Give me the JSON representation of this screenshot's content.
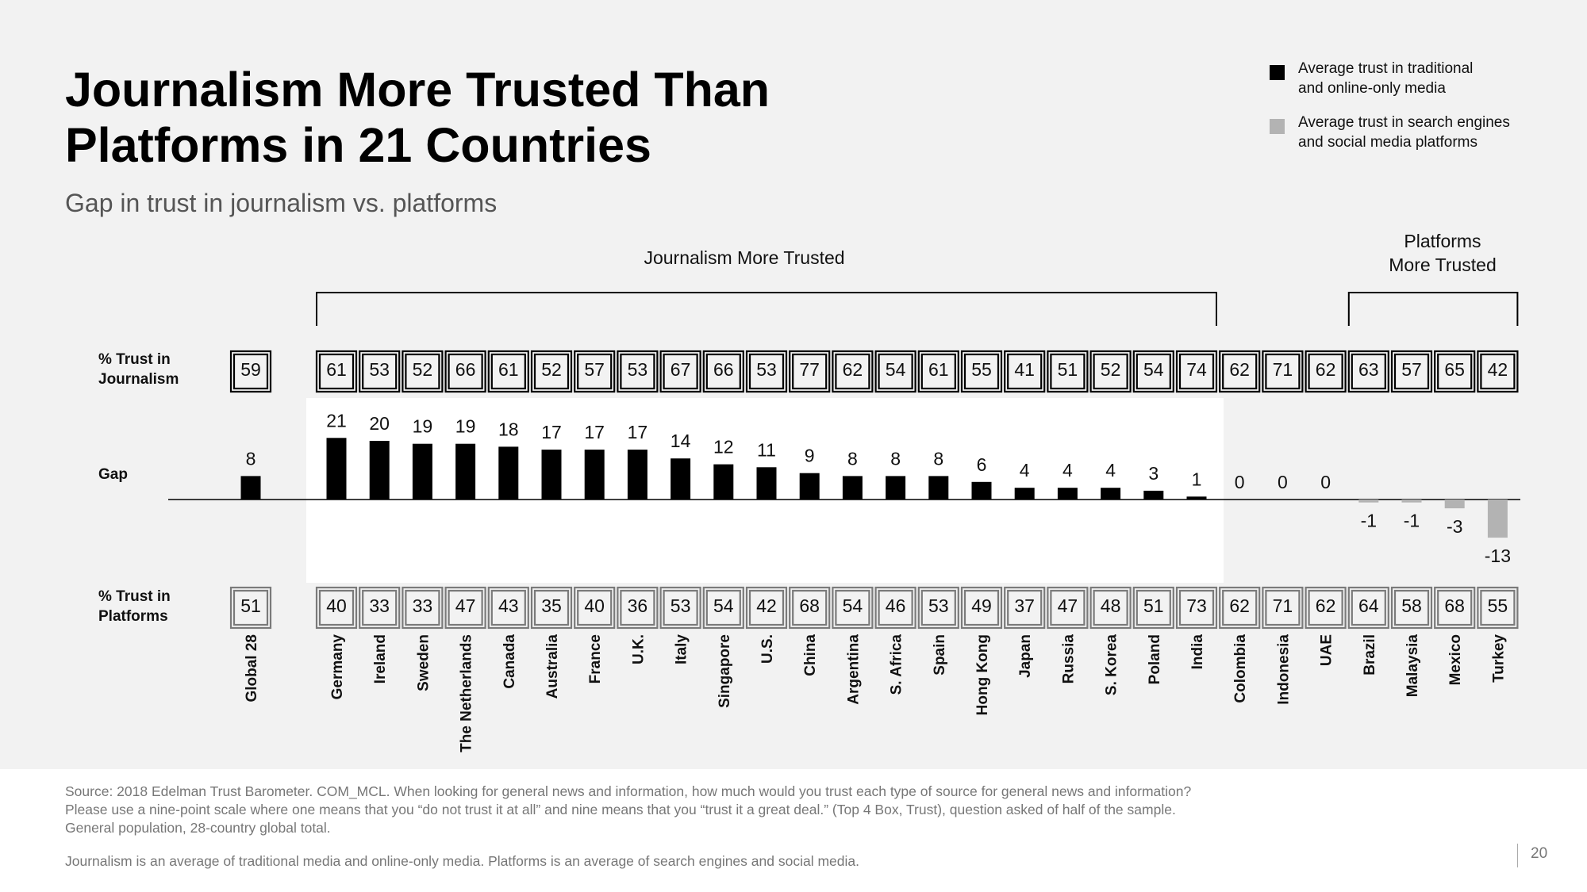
{
  "title": "Journalism More Trusted Than Platforms in 21 Countries",
  "subtitle": "Gap in trust in journalism vs. platforms",
  "legend": {
    "items": [
      {
        "label": "Average trust in traditional\nand online-only media",
        "color": "#000000"
      },
      {
        "label": "Average trust in search engines\nand social media platforms",
        "color": "#b3b3b3"
      }
    ]
  },
  "footnote": {
    "source": "Source: 2018 Edelman Trust Barometer. COM_MCL. When looking for general news and information, how much would you trust each type of source for general news and information? Please use a nine-point scale where one means that you “do not trust it at all” and nine means that you “trust it a great deal.” (Top 4 Box, Trust), question asked of half of the sample. General population, 28-country global total.",
    "note": "Journalism is an average of traditional media and online-only media. Platforms is an average of search engines and social media."
  },
  "page_number": "20",
  "chart_data": {
    "type": "bar",
    "title": "Journalism More Trusted Than Platforms in 21 Countries",
    "subtitle": "Gap in trust in journalism vs. platforms",
    "row_labels": {
      "journalism": "% Trust in\nJournalism",
      "gap": "Gap",
      "platforms": "% Trust in\nPlatforms"
    },
    "group_labels": {
      "journalism_more": "Journalism More Trusted",
      "platforms_more": "Platforms\nMore Trusted"
    },
    "categories": [
      "Global 28",
      "Germany",
      "Ireland",
      "Sweden",
      "The Netherlands",
      "Canada",
      "Australia",
      "France",
      "U.K.",
      "Italy",
      "Singapore",
      "U.S.",
      "China",
      "Argentina",
      "S. Africa",
      "Spain",
      "Hong Kong",
      "Japan",
      "Russia",
      "S. Korea",
      "Poland",
      "India",
      "Colombia",
      "Indonesia",
      "UAE",
      "Brazil",
      "Malaysia",
      "Mexico",
      "Turkey"
    ],
    "series": [
      {
        "name": "% Trust in Journalism",
        "values": [
          59,
          61,
          53,
          52,
          66,
          61,
          52,
          57,
          53,
          67,
          66,
          53,
          77,
          62,
          54,
          61,
          55,
          41,
          51,
          52,
          54,
          74,
          62,
          71,
          62,
          63,
          57,
          65,
          42
        ]
      },
      {
        "name": "Gap",
        "values": [
          8,
          21,
          20,
          19,
          19,
          18,
          17,
          17,
          17,
          14,
          12,
          11,
          9,
          8,
          8,
          8,
          6,
          4,
          4,
          4,
          3,
          1,
          0,
          0,
          0,
          -1,
          -1,
          -3,
          -13
        ]
      },
      {
        "name": "% Trust in Platforms",
        "values": [
          51,
          40,
          33,
          33,
          47,
          43,
          35,
          40,
          36,
          53,
          54,
          42,
          68,
          54,
          46,
          53,
          49,
          37,
          47,
          48,
          51,
          73,
          62,
          71,
          62,
          64,
          58,
          68,
          55
        ]
      }
    ],
    "colors": {
      "positive": "#000000",
      "negative": "#b3b3b3",
      "platform_box": "#7a7a7a",
      "journalism_box": "#000000"
    }
  }
}
